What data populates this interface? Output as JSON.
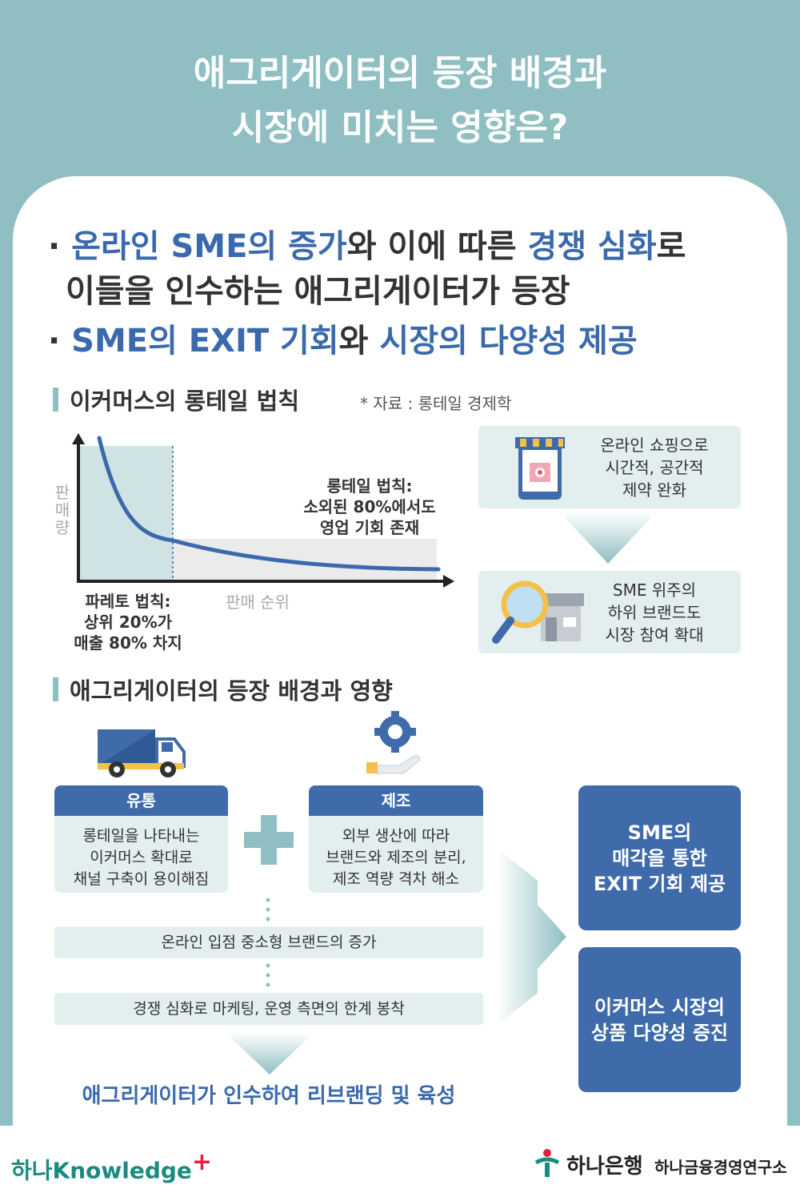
{
  "header": {
    "title_line1": "애그리게이터의 등장 배경과",
    "title_line2": "시장에 미치는 영향은?"
  },
  "bullets": {
    "b1_hl1": "온라인 SME의 증가",
    "b1_t1": "와 이에 따른 ",
    "b1_hl2": "경쟁 심화",
    "b1_t2": "로",
    "b1_line2": "이들을 인수하는 애그리게이터가 등장",
    "b2_hl1": "SME의 EXIT 기회",
    "b2_t1": "와 ",
    "b2_hl2": "시장의 다양성 제공"
  },
  "section1": {
    "title": "이커머스의 롱테일 법칙",
    "source": "* 자료 : 롱테일 경제학",
    "y_axis_label": "판매량",
    "x_axis_label": "판매 순위",
    "longtail_label_1": "롱테일 법칙:",
    "longtail_label_2": "소외된 80%에서도",
    "longtail_label_3": "영업 기회 존재",
    "pareto_label_1": "파레토 법칙:",
    "pareto_label_2": "상위 20%가",
    "pareto_label_3": "매출 80% 차지",
    "box1_l1": "온라인 쇼핑으로",
    "box1_l2": "시간적, 공간적",
    "box1_l3": "제약 완화",
    "box2_l1": "SME 위주의",
    "box2_l2": "하위 브랜드도",
    "box2_l3": "시장 참여 확대"
  },
  "section2": {
    "title": "애그리게이터의 등장 배경과 영향",
    "dist_header": "유통",
    "dist_l1": "롱테일을 나타내는",
    "dist_l2": "이커머스 확대로",
    "dist_l3": "채널 구축이 용이해짐",
    "mfg_header": "제조",
    "mfg_l1": "외부 생산에 따라",
    "mfg_l2": "브랜드와 제조의 분리,",
    "mfg_l3": "제조 역량 격차 해소",
    "step1": "온라인 입점 중소형 브랜드의 증가",
    "step2": "경쟁 심화로 마케팅, 운영 측면의 한계 봉착",
    "conclusion": "애그리게이터가 인수하여 리브랜딩 및 육성",
    "result1_l1": "SME의",
    "result1_l2": "매각을 통한",
    "result1_l3": "EXIT 기회 제공",
    "result2_l1": "이커머스 시장의",
    "result2_l2": "상품 다양성 증진"
  },
  "footer": {
    "left_logo": "하나Knowledge",
    "bank": "하나은행",
    "institute": "하나금융경영연구소"
  },
  "colors": {
    "teal": "#8fbfc2",
    "blue": "#3f6bab",
    "light": "#e3efef",
    "curve": "#3a6aad"
  }
}
